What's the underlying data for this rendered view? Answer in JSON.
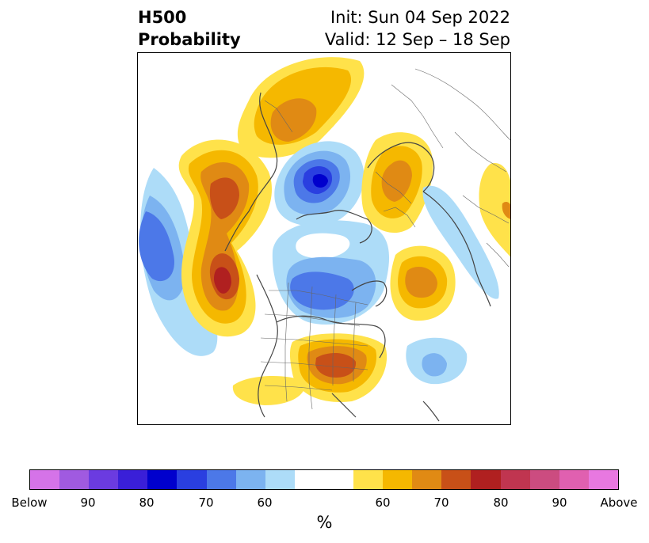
{
  "title": {
    "left_line1": "H500",
    "left_line2": "Probability",
    "right_line1": "Init: Sun 04 Sep 2022",
    "right_line2": "Valid: 12 Sep – 18 Sep"
  },
  "colorbar": {
    "label": "%",
    "colors": [
      "#d573e8",
      "#a05ae0",
      "#6b3be0",
      "#3a1fd8",
      "#0000cd",
      "#2a3fe0",
      "#4c78e8",
      "#7cb3f0",
      "#addcf8",
      "#ffffff",
      "#ffe24a",
      "#f5b800",
      "#e08a14",
      "#c85018",
      "#b02020",
      "#c03550",
      "#cc4c80",
      "#e060b0",
      "#e878e0"
    ],
    "tick_labels": [
      "Below",
      "90",
      "80",
      "70",
      "60",
      "60",
      "70",
      "80",
      "90",
      "Above"
    ]
  },
  "map": {
    "projection": "north-polar-stereographic",
    "features": [
      "coastlines",
      "country-borders",
      "us-state-borders"
    ]
  }
}
